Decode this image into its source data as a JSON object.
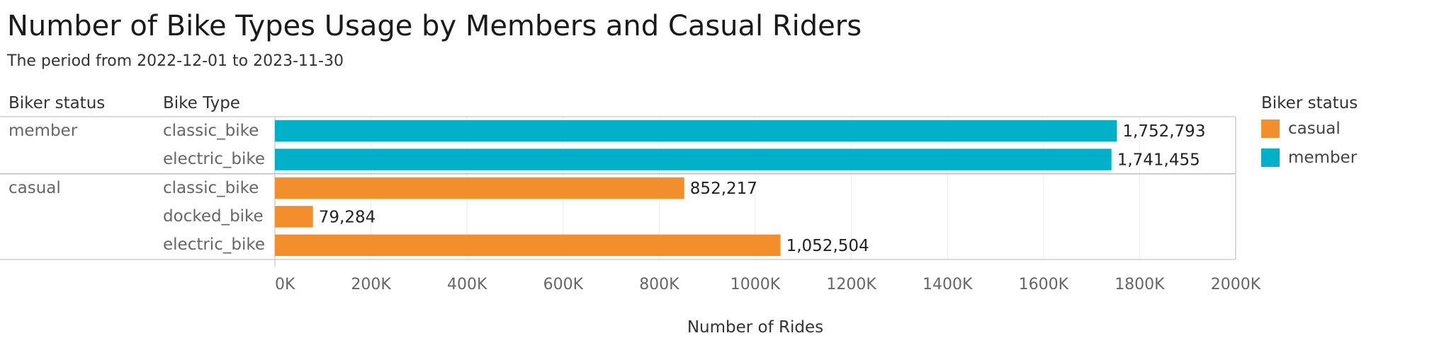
{
  "title": "Number of Bike Types Usage by Members and Casual Riders",
  "subtitle": "The period from 2022-12-01 to 2023-11-30",
  "headers": {
    "status": "Biker status",
    "type": "Bike Type"
  },
  "groups": [
    "member",
    "casual"
  ],
  "legend": {
    "title": "Biker status",
    "items": [
      {
        "label": "casual",
        "color": "#f28e2b"
      },
      {
        "label": "member",
        "color": "#00b0c8"
      }
    ]
  },
  "chart_data": {
    "type": "bar",
    "orientation": "horizontal",
    "title": "Number of Bike Types Usage by Members and Casual Riders",
    "subtitle": "The period from 2022-12-01 to 2023-11-30",
    "xlabel": "Number of Rides",
    "ylabel": "",
    "xlim": [
      0,
      2000000
    ],
    "xticks": [
      "0K",
      "200K",
      "400K",
      "600K",
      "800K",
      "1000K",
      "1200K",
      "1400K",
      "1600K",
      "1800K",
      "2000K"
    ],
    "grid": true,
    "legend_position": "right",
    "rows": [
      {
        "status": "member",
        "bike_type": "classic_bike",
        "value": 1752793,
        "label": "1,752,793"
      },
      {
        "status": "member",
        "bike_type": "electric_bike",
        "value": 1741455,
        "label": "1,741,455"
      },
      {
        "status": "casual",
        "bike_type": "classic_bike",
        "value": 852217,
        "label": "852,217"
      },
      {
        "status": "casual",
        "bike_type": "docked_bike",
        "value": 79284,
        "label": "79,284"
      },
      {
        "status": "casual",
        "bike_type": "electric_bike",
        "value": 1052504,
        "label": "1,052,504"
      }
    ],
    "colors": {
      "member": "#00b0c8",
      "casual": "#f28e2b"
    }
  }
}
